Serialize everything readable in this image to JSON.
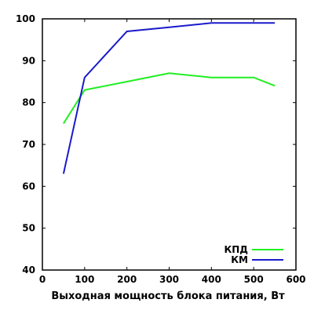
{
  "chart_data": {
    "type": "line",
    "title": "",
    "xlabel": "Выходная мощность блока питания, Вт",
    "ylabel": "",
    "xlim": [
      0,
      600
    ],
    "ylim": [
      40,
      100
    ],
    "x_ticks": [
      0,
      100,
      200,
      300,
      400,
      500,
      600
    ],
    "y_ticks": [
      40,
      50,
      60,
      70,
      80,
      90,
      100
    ],
    "grid": false,
    "legend_position": "bottom-right",
    "series": [
      {
        "name": "КПД",
        "color": "#22ee22",
        "x": [
          50,
          100,
          200,
          300,
          400,
          500,
          550
        ],
        "y": [
          75,
          83,
          85,
          87,
          86,
          86,
          84
        ]
      },
      {
        "name": "КМ",
        "color": "#1a1acc",
        "x": [
          50,
          100,
          200,
          300,
          400,
          500,
          550
        ],
        "y": [
          63,
          86,
          97,
          98,
          99,
          99,
          99
        ]
      }
    ]
  }
}
